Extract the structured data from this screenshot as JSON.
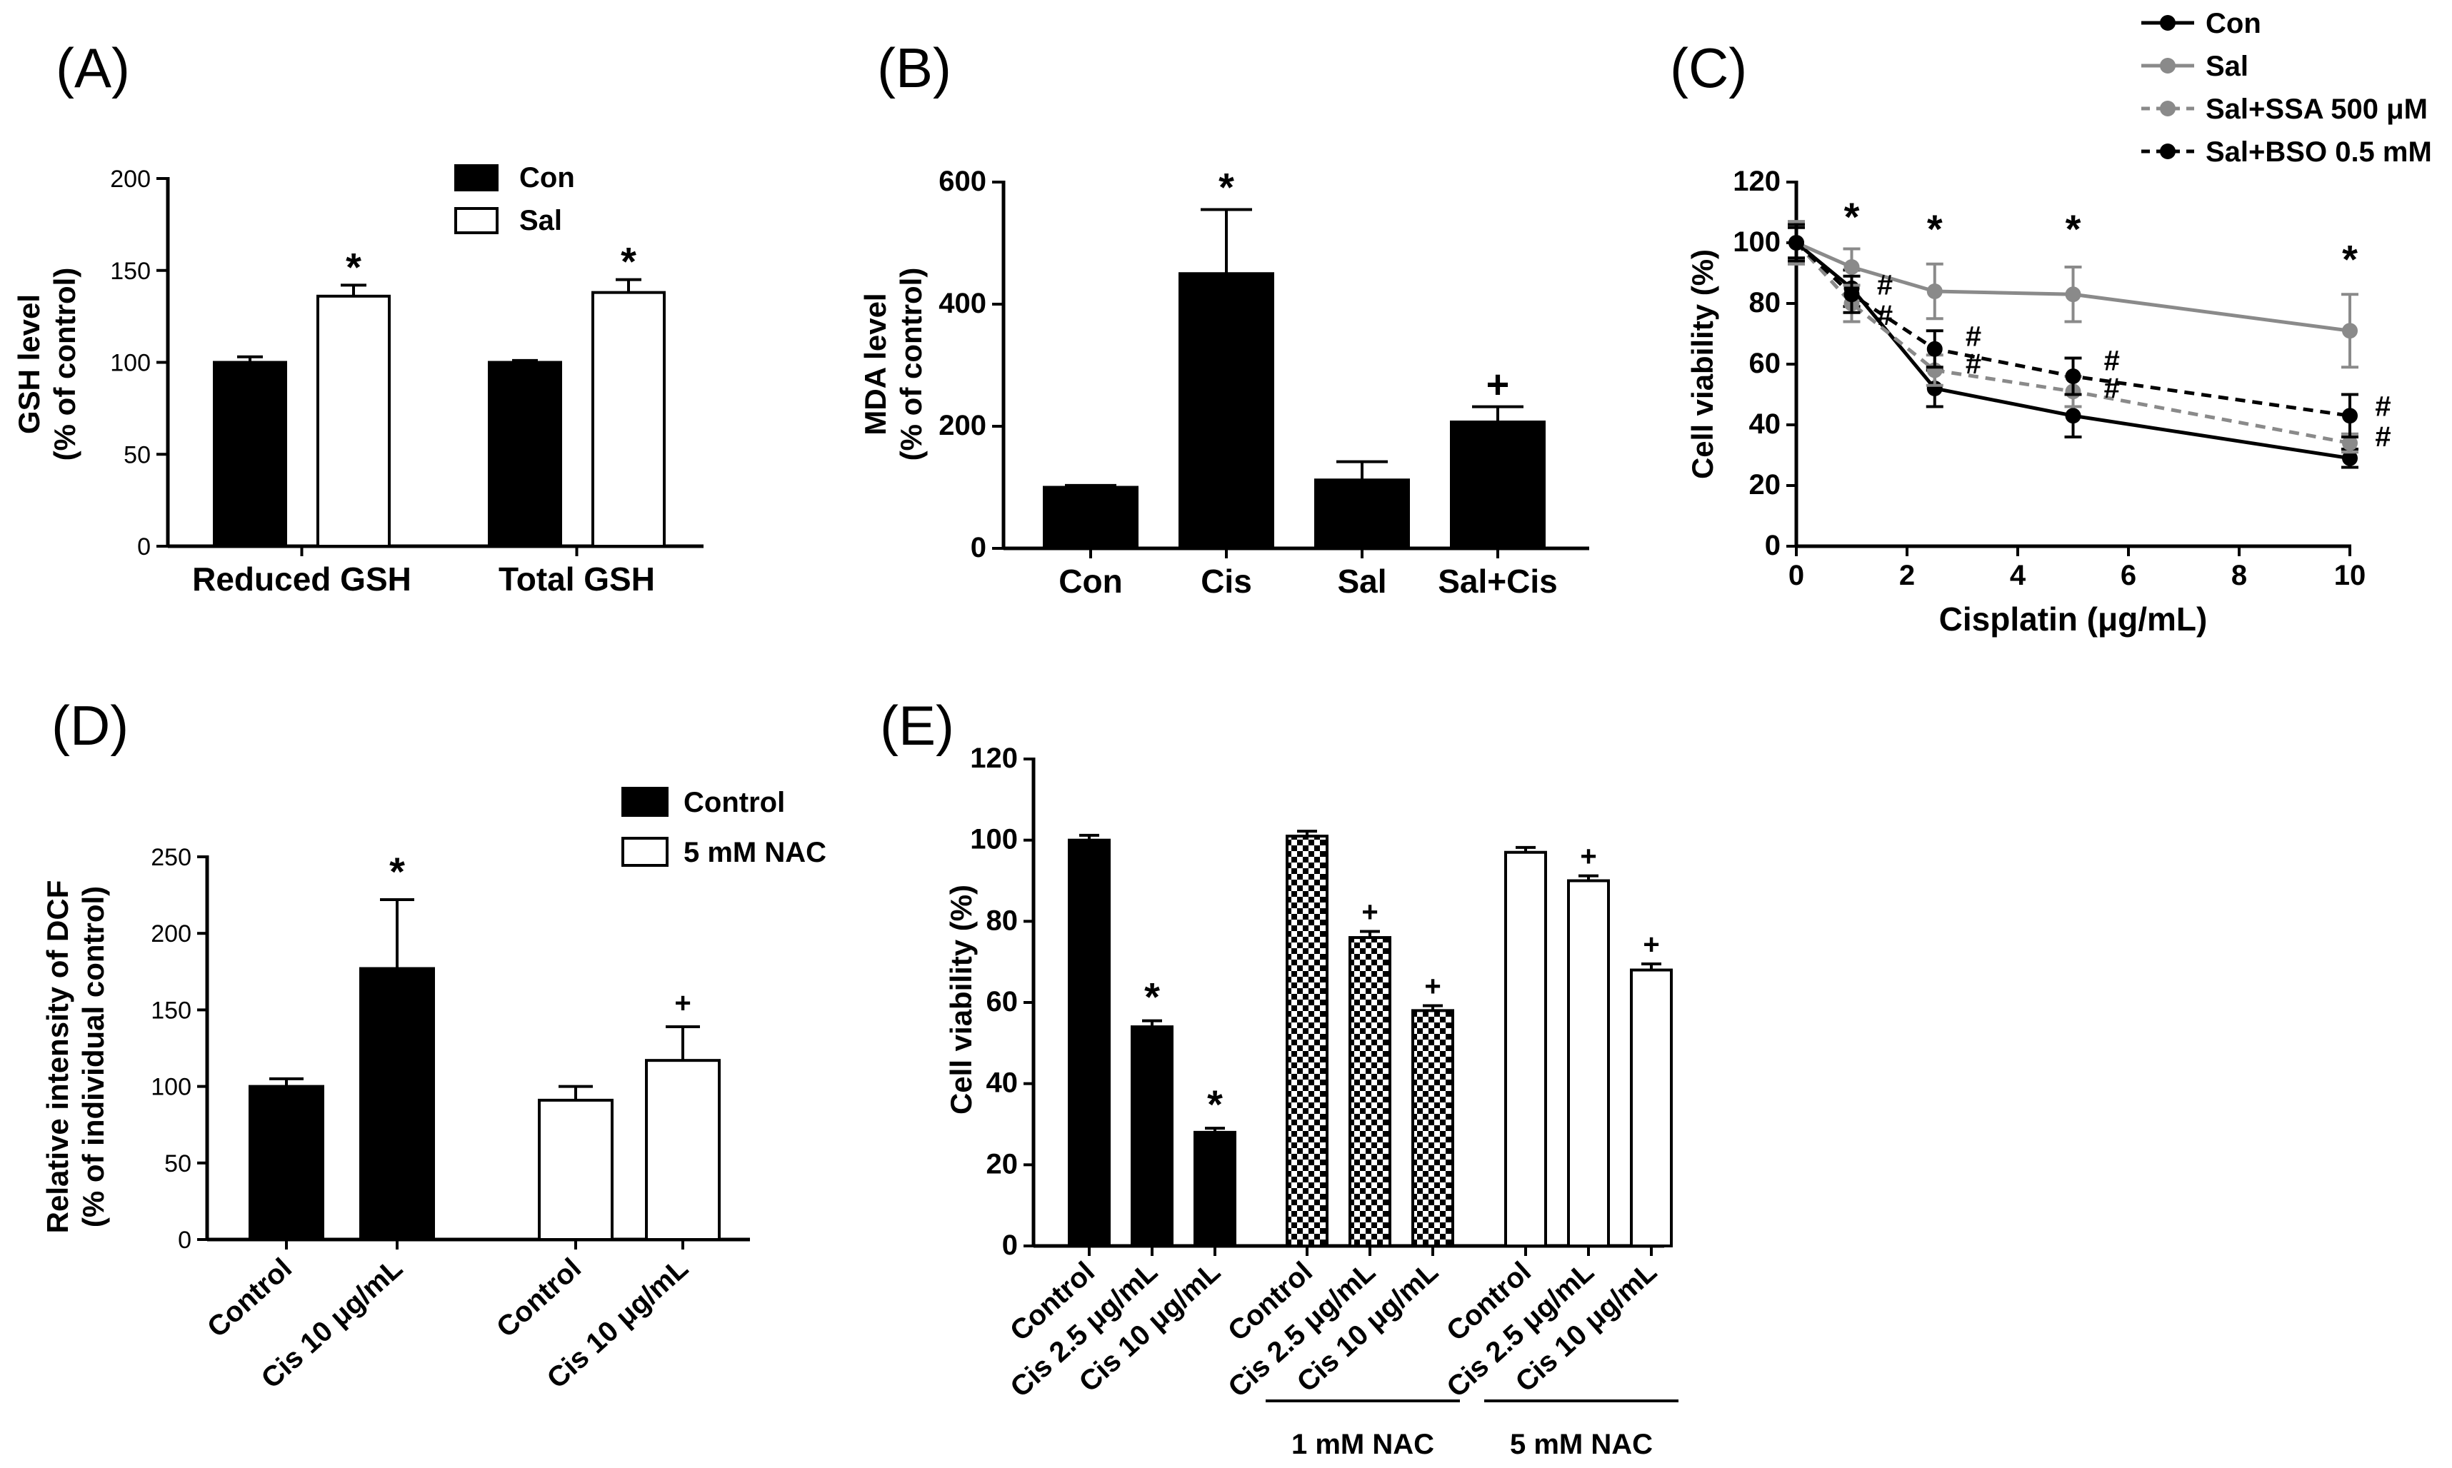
{
  "chart_data": [
    {
      "id": "A",
      "panel_label": "(A)",
      "type": "bar",
      "ylabel": [
        "GSH level",
        "(% of control)"
      ],
      "ylim": [
        0,
        200
      ],
      "yticks": [
        "0",
        "50",
        "100",
        "150",
        "200"
      ],
      "categories": [
        "Reduced GSH",
        "Total GSH"
      ],
      "series": [
        {
          "name": "Con",
          "fill": "#000000",
          "values": [
            100,
            100
          ],
          "errors": [
            3,
            1
          ]
        },
        {
          "name": "Sal",
          "fill": "#ffffff",
          "values": [
            136,
            138
          ],
          "errors": [
            6,
            7
          ]
        }
      ],
      "annotations": [
        {
          "text": "*",
          "category": 0,
          "series": 1
        },
        {
          "text": "*",
          "category": 1,
          "series": 1
        }
      ]
    },
    {
      "id": "B",
      "panel_label": "(B)",
      "type": "bar",
      "ylabel": [
        "MDA level",
        "(% of control)"
      ],
      "ylim": [
        0,
        600
      ],
      "yticks": [
        "0",
        "200",
        "400",
        "600"
      ],
      "categories": [
        "Con",
        "Cis",
        "Sal",
        "Sal+Cis"
      ],
      "values": [
        100,
        450,
        112,
        207
      ],
      "errors": [
        3,
        105,
        30,
        25
      ],
      "annotations": [
        {
          "text": "*",
          "index": 1
        },
        {
          "text": "+",
          "index": 3
        }
      ]
    },
    {
      "id": "C",
      "panel_label": "(C)",
      "type": "line",
      "xlabel": "Cisplatin (μg/mL)",
      "ylabel": "Cell viability (%)",
      "xlim": [
        0,
        10
      ],
      "ylim": [
        0,
        120
      ],
      "xticks": [
        "0",
        "2",
        "4",
        "6",
        "8",
        "10"
      ],
      "yticks": [
        "0",
        "20",
        "40",
        "60",
        "80",
        "100",
        "120"
      ],
      "x": [
        0,
        1,
        2.5,
        5,
        10
      ],
      "series": [
        {
          "name": "Con",
          "color": "#000000",
          "dash": "solid",
          "values": [
            100,
            85,
            52,
            43,
            29
          ],
          "errors": [
            5,
            6,
            6,
            7,
            3
          ]
        },
        {
          "name": "Sal",
          "color": "#8a8a8a",
          "dash": "solid",
          "values": [
            100,
            92,
            84,
            83,
            71
          ],
          "errors": [
            7,
            6,
            9,
            9,
            12
          ]
        },
        {
          "name": "Sal+SSA 500 μM",
          "color": "#8a8a8a",
          "dash": "dashed",
          "values": [
            100,
            80,
            58,
            51,
            34
          ],
          "errors": [
            7,
            6,
            5,
            5,
            3
          ]
        },
        {
          "name": "Sal+BSO 0.5 mM",
          "color": "#000000",
          "dash": "dashed",
          "values": [
            100,
            83,
            65,
            56,
            43
          ],
          "errors": [
            6,
            6,
            6,
            6,
            7
          ]
        }
      ],
      "annotations": [
        {
          "text": "*",
          "x": 1,
          "y": 104
        },
        {
          "text": "*",
          "x": 2.5,
          "y": 100
        },
        {
          "text": "*",
          "x": 5,
          "y": 100
        },
        {
          "text": "*",
          "x": 10,
          "y": 90
        },
        {
          "text": "#",
          "x": 1.6,
          "y": 83
        },
        {
          "text": "#",
          "x": 1.6,
          "y": 73
        },
        {
          "text": "#",
          "x": 3.2,
          "y": 66
        },
        {
          "text": "#",
          "x": 3.2,
          "y": 57
        },
        {
          "text": "#",
          "x": 5.7,
          "y": 58
        },
        {
          "text": "#",
          "x": 5.7,
          "y": 49
        },
        {
          "text": "#",
          "x": 10.6,
          "y": 43
        },
        {
          "text": "#",
          "x": 10.6,
          "y": 33
        }
      ]
    },
    {
      "id": "D",
      "panel_label": "(D)",
      "type": "bar",
      "ylabel": [
        "Relative intensity of DCF",
        "(% of individual control)"
      ],
      "ylim": [
        0,
        250
      ],
      "yticks": [
        "0",
        "50",
        "100",
        "150",
        "200",
        "250"
      ],
      "categories": [
        "Control",
        "Cis 10 μg/mL",
        "Control",
        "Cis 10 μg/mL"
      ],
      "values": [
        100,
        177,
        91,
        117
      ],
      "errors": [
        5,
        45,
        9,
        22
      ],
      "groups": [
        "Control",
        "Control",
        "5 mM NAC",
        "5 mM NAC"
      ],
      "legend": [
        {
          "name": "Control",
          "fill": "#000000"
        },
        {
          "name": "5 mM NAC",
          "fill": "#ffffff"
        }
      ],
      "annotations": [
        {
          "text": "*",
          "index": 1
        },
        {
          "text": "+",
          "index": 3
        }
      ]
    },
    {
      "id": "E",
      "panel_label": "(E)",
      "type": "bar",
      "ylabel": "Cell viability (%)",
      "ylim": [
        0,
        120
      ],
      "yticks": [
        "0",
        "20",
        "40",
        "60",
        "80",
        "100",
        "120"
      ],
      "categories": [
        "Control",
        "Cis 2.5 μg/mL",
        "Cis 10 μg/mL",
        "Control",
        "Cis 2.5 μg/mL",
        "Cis 10 μg/mL",
        "Control",
        "Cis 2.5 μg/mL",
        "Cis 10 μg/mL"
      ],
      "values": [
        100,
        54,
        28,
        101,
        76,
        58,
        97,
        90,
        68
      ],
      "errors": [
        1.2,
        1.5,
        1,
        1.2,
        1.5,
        1.2,
        1.2,
        1.2,
        1.5
      ],
      "fills": [
        "black",
        "black",
        "black",
        "checker",
        "checker",
        "checker",
        "white",
        "white",
        "white"
      ],
      "group_labels": [
        {
          "text": "1 mM NAC",
          "from": 3,
          "to": 5
        },
        {
          "text": "5 mM NAC",
          "from": 6,
          "to": 8
        }
      ],
      "annotations": [
        {
          "text": "*",
          "index": 1
        },
        {
          "text": "*",
          "index": 2
        },
        {
          "text": "+",
          "index": 4
        },
        {
          "text": "+",
          "index": 5
        },
        {
          "text": "+",
          "index": 7
        },
        {
          "text": "+",
          "index": 8
        }
      ]
    }
  ]
}
